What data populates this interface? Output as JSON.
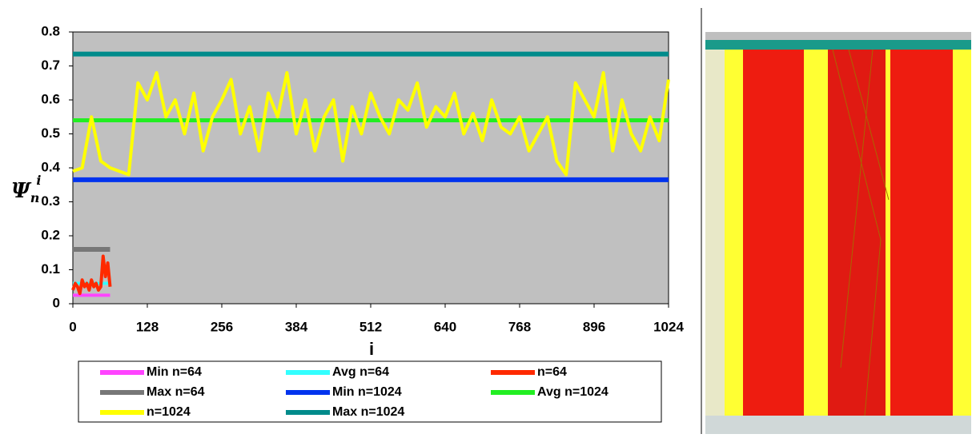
{
  "chart_data": {
    "type": "line",
    "x_label": "i",
    "y_label": "Ψ",
    "y_label_sub": "n",
    "y_label_sup": "i",
    "xlim": [
      0,
      1024
    ],
    "xticks": [
      0,
      128,
      256,
      384,
      512,
      640,
      768,
      896,
      1024
    ],
    "ylim": [
      0,
      0.8
    ],
    "yticks": [
      0,
      0.1,
      0.2,
      0.3,
      0.4,
      0.5,
      0.6,
      0.7,
      0.8
    ],
    "series": [
      {
        "name": "Min n=64",
        "color": "#ff44ff",
        "x": [
          0,
          64
        ],
        "values": [
          0.025,
          0.025
        ]
      },
      {
        "name": "Avg n=64",
        "color": "#33ffff",
        "x": [
          0,
          64
        ],
        "values": [
          0.06,
          0.06
        ]
      },
      {
        "name": "n=64",
        "color": "#ff2a00",
        "x": [
          0,
          4,
          8,
          12,
          16,
          20,
          24,
          28,
          32,
          36,
          40,
          44,
          48,
          52,
          56,
          60,
          64
        ],
        "values": [
          0.04,
          0.06,
          0.05,
          0.03,
          0.07,
          0.05,
          0.06,
          0.04,
          0.07,
          0.05,
          0.06,
          0.04,
          0.05,
          0.14,
          0.08,
          0.12,
          0.05
        ]
      },
      {
        "name": "Max n=64",
        "color": "#777777",
        "x": [
          0,
          64
        ],
        "values": [
          0.16,
          0.16
        ]
      },
      {
        "name": "Min n=1024",
        "color": "#0033ee",
        "x": [
          0,
          1024
        ],
        "values": [
          0.365,
          0.365
        ]
      },
      {
        "name": "Avg n=1024",
        "color": "#22ee22",
        "x": [
          0,
          1024
        ],
        "values": [
          0.54,
          0.54
        ]
      },
      {
        "name": "n=1024",
        "color": "#ffff00",
        "x": [
          0,
          16,
          32,
          48,
          64,
          80,
          96,
          112,
          128,
          144,
          160,
          176,
          192,
          208,
          224,
          240,
          256,
          272,
          288,
          304,
          320,
          336,
          352,
          368,
          384,
          400,
          416,
          432,
          448,
          464,
          480,
          496,
          512,
          528,
          544,
          560,
          576,
          592,
          608,
          624,
          640,
          656,
          672,
          688,
          704,
          720,
          736,
          752,
          768,
          784,
          800,
          816,
          832,
          848,
          864,
          880,
          896,
          912,
          928,
          944,
          960,
          976,
          992,
          1008,
          1024
        ],
        "values": [
          0.39,
          0.4,
          0.55,
          0.42,
          0.4,
          0.39,
          0.38,
          0.65,
          0.6,
          0.68,
          0.55,
          0.6,
          0.5,
          0.62,
          0.45,
          0.55,
          0.6,
          0.66,
          0.5,
          0.58,
          0.45,
          0.62,
          0.55,
          0.68,
          0.5,
          0.6,
          0.45,
          0.55,
          0.6,
          0.42,
          0.58,
          0.5,
          0.62,
          0.55,
          0.5,
          0.6,
          0.57,
          0.65,
          0.52,
          0.58,
          0.55,
          0.62,
          0.5,
          0.56,
          0.48,
          0.6,
          0.52,
          0.5,
          0.55,
          0.45,
          0.5,
          0.55,
          0.42,
          0.38,
          0.65,
          0.6,
          0.55,
          0.68,
          0.45,
          0.6,
          0.5,
          0.45,
          0.55,
          0.48,
          0.66
        ]
      },
      {
        "name": "Max n=1024",
        "color": "#008b8b",
        "x": [
          0,
          1024
        ],
        "values": [
          0.735,
          0.735
        ]
      }
    ],
    "line_widths": [
      4,
      4,
      4,
      6,
      6,
      5,
      4,
      6
    ],
    "grid": false
  }
}
